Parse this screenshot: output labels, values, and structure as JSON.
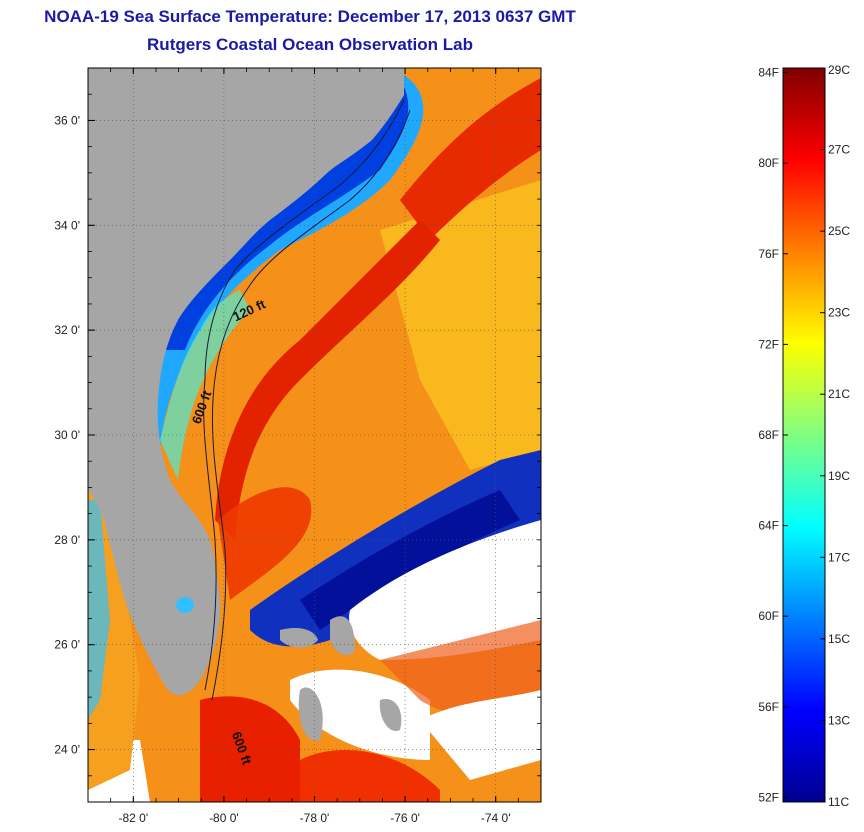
{
  "header": {
    "title": "NOAA-19 Sea Surface Temperature:  December 17, 2013 0637 GMT",
    "subtitle": "Rutgers Coastal Ocean Observation Lab"
  },
  "map": {
    "lon_range": [
      -83,
      -73
    ],
    "lat_range": [
      23,
      37
    ],
    "x_ticks": [
      {
        "value": -82,
        "label": "-82 0'"
      },
      {
        "value": -80,
        "label": "-80 0'"
      },
      {
        "value": -78,
        "label": "-78 0'"
      },
      {
        "value": -76,
        "label": "-76 0'"
      },
      {
        "value": -74,
        "label": "-74 0'"
      }
    ],
    "y_ticks": [
      {
        "value": 36,
        "label": "36 0'"
      },
      {
        "value": 34,
        "label": "34 0'"
      },
      {
        "value": 32,
        "label": "32 0'"
      },
      {
        "value": 30,
        "label": "30 0'"
      },
      {
        "value": 28,
        "label": "28 0'"
      },
      {
        "value": 26,
        "label": "26 0'"
      },
      {
        "value": 24,
        "label": "24 0'"
      }
    ],
    "contour_labels": [
      {
        "text": "120 ft",
        "lon": -79.4,
        "lat": 32.3,
        "rotate": -25
      },
      {
        "text": "600 ft",
        "lon": -80.4,
        "lat": 30.5,
        "rotate": -70
      },
      {
        "text": "600 ft",
        "lon": -79.7,
        "lat": 24.0,
        "rotate": 70
      }
    ],
    "colors": {
      "land": "#a6a6a6",
      "no_data": "#ffffff",
      "grid": "#555555"
    }
  },
  "colorbar": {
    "range_c": [
      11,
      29
    ],
    "celsius_ticks": [
      {
        "value": 29,
        "label": "29C"
      },
      {
        "value": 27,
        "label": "27C"
      },
      {
        "value": 25,
        "label": "25C"
      },
      {
        "value": 23,
        "label": "23C"
      },
      {
        "value": 21,
        "label": "21C"
      },
      {
        "value": 19,
        "label": "19C"
      },
      {
        "value": 17,
        "label": "17C"
      },
      {
        "value": 15,
        "label": "15C"
      },
      {
        "value": 13,
        "label": "13C"
      },
      {
        "value": 11,
        "label": "11C"
      }
    ],
    "fahrenheit_ticks": [
      {
        "value": 84,
        "label": "84F"
      },
      {
        "value": 80,
        "label": "80F"
      },
      {
        "value": 76,
        "label": "76F"
      },
      {
        "value": 72,
        "label": "72F"
      },
      {
        "value": 68,
        "label": "68F"
      },
      {
        "value": 64,
        "label": "64F"
      },
      {
        "value": 60,
        "label": "60F"
      },
      {
        "value": 56,
        "label": "56F"
      },
      {
        "value": 52,
        "label": "52F"
      }
    ],
    "gradient": [
      "#00008f",
      "#0000ff",
      "#0080ff",
      "#00ffff",
      "#80ff80",
      "#ffff00",
      "#ff8000",
      "#ff0000",
      "#800000"
    ]
  }
}
